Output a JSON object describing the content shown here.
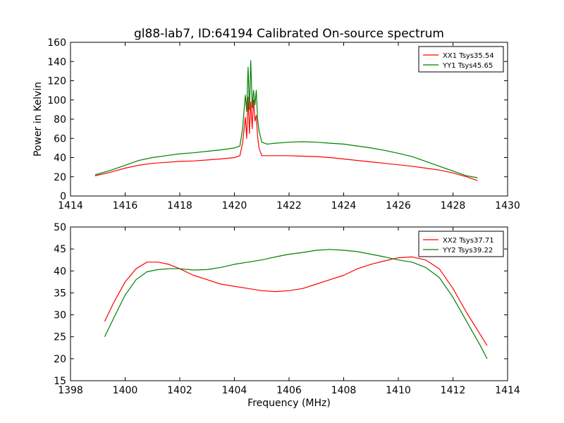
{
  "figure": {
    "title": "gl88-lab7, ID:64194 Calibrated On-source spectrum"
  },
  "chart_data": [
    {
      "type": "line",
      "title": "gl88-lab7, ID:64194 Calibrated On-source spectrum",
      "xlabel": "",
      "ylabel": "Power in Kelvin",
      "xlim": [
        1414,
        1430
      ],
      "ylim": [
        0,
        160
      ],
      "xticks": [
        1414,
        1416,
        1418,
        1420,
        1422,
        1424,
        1426,
        1428,
        1430
      ],
      "yticks": [
        0,
        20,
        40,
        60,
        80,
        100,
        120,
        140,
        160
      ],
      "grid": false,
      "legend_position": "top-right",
      "series": [
        {
          "name": "XX1 Tsys35.54",
          "color": "#ff0000",
          "x": [
            1414.9,
            1415.5,
            1416,
            1416.5,
            1417,
            1417.5,
            1418,
            1418.5,
            1419,
            1419.5,
            1420,
            1420.2,
            1420.3,
            1420.4,
            1420.45,
            1420.5,
            1420.55,
            1420.6,
            1420.65,
            1420.7,
            1420.75,
            1420.8,
            1420.85,
            1420.9,
            1421.0,
            1421.2,
            1421.5,
            1422,
            1422.5,
            1423,
            1423.5,
            1424,
            1424.5,
            1425,
            1425.5,
            1426,
            1426.5,
            1427,
            1427.5,
            1428,
            1428.5,
            1428.9
          ],
          "y": [
            21,
            25,
            29,
            32,
            34,
            35,
            36,
            36.5,
            37.5,
            38.5,
            40,
            42,
            55,
            82,
            60,
            103,
            65,
            98,
            70,
            100,
            78,
            84,
            62,
            50,
            42,
            42,
            42,
            42,
            41.5,
            41,
            40,
            38.5,
            37,
            35.5,
            34,
            32.5,
            31,
            29,
            27,
            24,
            20,
            16
          ]
        },
        {
          "name": "YY1 Tsys45.65",
          "color": "#008000",
          "x": [
            1414.9,
            1415.5,
            1416,
            1416.5,
            1417,
            1417.5,
            1418,
            1418.5,
            1419,
            1419.5,
            1420,
            1420.2,
            1420.3,
            1420.4,
            1420.45,
            1420.5,
            1420.55,
            1420.6,
            1420.65,
            1420.7,
            1420.75,
            1420.8,
            1420.85,
            1420.9,
            1421.0,
            1421.2,
            1421.5,
            1422,
            1422.5,
            1423,
            1423.5,
            1424,
            1424.5,
            1425,
            1425.5,
            1426,
            1426.5,
            1427,
            1427.5,
            1428,
            1428.5,
            1428.9
          ],
          "y": [
            22,
            27,
            32,
            37,
            40,
            42,
            44,
            45,
            46.5,
            48,
            50,
            52,
            70,
            105,
            88,
            134,
            90,
            141,
            92,
            110,
            95,
            110,
            80,
            68,
            56,
            54,
            55,
            56,
            56.5,
            56,
            55,
            54,
            52,
            50,
            47.5,
            44.5,
            41,
            36,
            31,
            26,
            21,
            19
          ]
        }
      ]
    },
    {
      "type": "line",
      "title": "",
      "xlabel": "Frequency (MHz)",
      "ylabel": "",
      "xlim": [
        1398,
        1414
      ],
      "ylim": [
        15,
        50
      ],
      "xticks": [
        1398,
        1400,
        1402,
        1404,
        1406,
        1408,
        1410,
        1412,
        1414
      ],
      "yticks": [
        15,
        20,
        25,
        30,
        35,
        40,
        45,
        50
      ],
      "grid": false,
      "legend_position": "top-right",
      "series": [
        {
          "name": "XX2 Tsys37.71",
          "color": "#ff0000",
          "x": [
            1399.25,
            1399.6,
            1400,
            1400.4,
            1400.8,
            1401.2,
            1401.6,
            1402,
            1402.5,
            1403,
            1403.5,
            1404,
            1404.5,
            1405,
            1405.5,
            1406,
            1406.5,
            1407,
            1407.5,
            1408,
            1408.5,
            1409,
            1409.5,
            1410,
            1410.5,
            1411,
            1411.5,
            1412,
            1412.5,
            1413,
            1413.25
          ],
          "y": [
            28.5,
            33,
            37.5,
            40.5,
            42,
            42,
            41.5,
            40.5,
            39,
            38,
            37,
            36.5,
            36,
            35.5,
            35.3,
            35.5,
            36,
            37,
            38,
            39,
            40.5,
            41.5,
            42.3,
            43,
            43.2,
            42.5,
            40.5,
            36,
            30.5,
            25.5,
            23
          ]
        },
        {
          "name": "YY2 Tsys39.22",
          "color": "#008000",
          "x": [
            1399.25,
            1399.6,
            1400,
            1400.4,
            1400.8,
            1401.2,
            1401.6,
            1402,
            1402.5,
            1403,
            1403.5,
            1404,
            1404.5,
            1405,
            1405.5,
            1406,
            1406.5,
            1407,
            1407.5,
            1408,
            1408.5,
            1409,
            1409.5,
            1410,
            1410.5,
            1411,
            1411.5,
            1412,
            1412.5,
            1413,
            1413.25
          ],
          "y": [
            25,
            29.5,
            34.5,
            38,
            39.8,
            40.3,
            40.5,
            40.5,
            40.2,
            40.3,
            40.8,
            41.5,
            42,
            42.5,
            43.2,
            43.8,
            44.2,
            44.7,
            44.9,
            44.7,
            44.4,
            43.8,
            43.2,
            42.5,
            42,
            40.8,
            38.5,
            34,
            28.5,
            23,
            20
          ]
        }
      ]
    }
  ]
}
